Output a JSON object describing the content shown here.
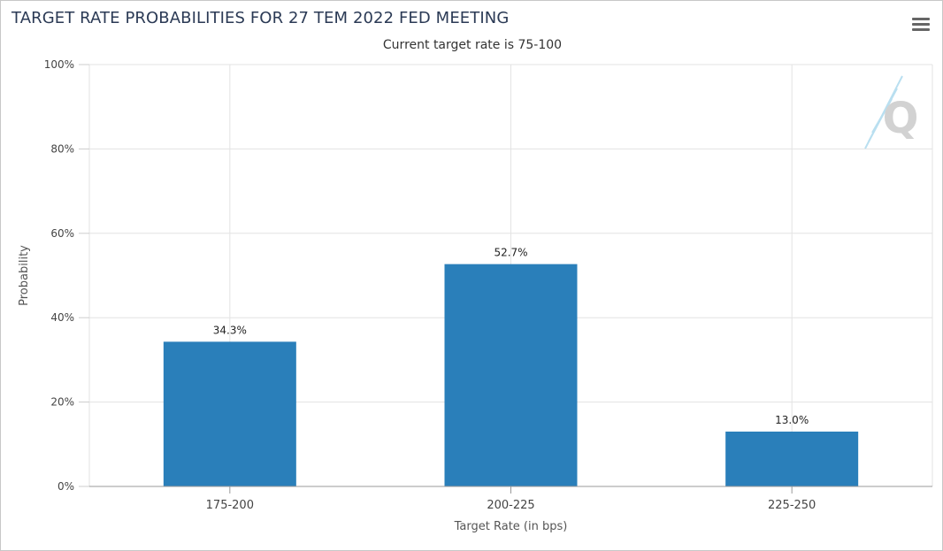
{
  "chart": {
    "title": "TARGET RATE PROBABILITIES FOR 27 TEM 2022 FED MEETING",
    "subtitle": "Current target rate is 75-100",
    "menu_icon": "hamburger-menu-icon",
    "watermark_icon": "q-logo-watermark-icon"
  },
  "chart_data": {
    "type": "bar",
    "title": "TARGET RATE PROBABILITIES FOR 27 TEM 2022 FED MEETING",
    "subtitle": "Current target rate is 75-100",
    "categories": [
      "175-200",
      "200-225",
      "225-250"
    ],
    "values": [
      34.3,
      52.7,
      13.0
    ],
    "data_labels": [
      "34.3%",
      "52.7%",
      "13.0%"
    ],
    "xlabel": "Target Rate (in bps)",
    "ylabel": "Probability",
    "ylim": [
      0,
      100
    ],
    "yticks": [
      "0%",
      "20%",
      "40%",
      "60%",
      "80%",
      "100%"
    ],
    "ytick_values": [
      0,
      20,
      40,
      60,
      80,
      100
    ],
    "grid": true,
    "legend": "none",
    "bar_color": "#2a7fba"
  }
}
